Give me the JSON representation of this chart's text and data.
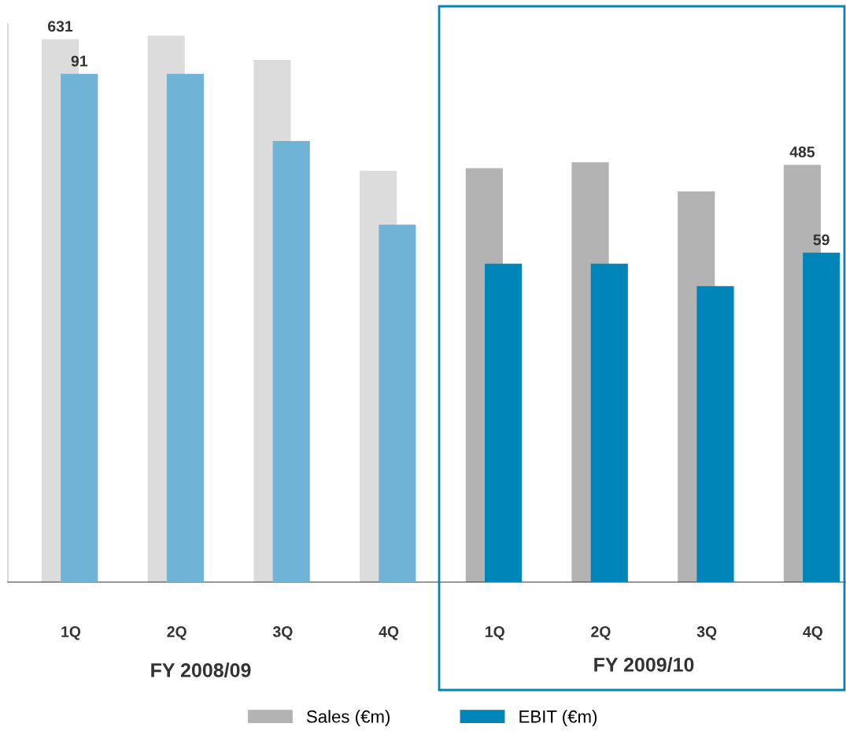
{
  "chart_data": {
    "type": "bar",
    "categories": [
      "1Q",
      "2Q",
      "3Q",
      "4Q",
      "1Q",
      "2Q",
      "3Q",
      "4Q"
    ],
    "series": [
      {
        "name": "Sales (€m)",
        "color": "#b3b3b3",
        "colors": [
          "#dcdcdc",
          "#dcdcdc",
          "#dcdcdc",
          "#dcdcdc",
          "#b3b3b3",
          "#b3b3b3",
          "#b3b3b3",
          "#b3b3b3"
        ],
        "values": [
          631,
          635,
          607,
          478,
          481,
          488,
          454,
          485
        ],
        "value_labels": [
          "631",
          null,
          null,
          null,
          null,
          null,
          null,
          "485"
        ]
      },
      {
        "name": "EBIT (€m)",
        "color": "#0085b8",
        "axis": "y2",
        "colors": [
          "#6fb3d6",
          "#6fb3d6",
          "#6fb3d6",
          "#6fb3d6",
          "#0085b8",
          "#0085b8",
          "#0085b8",
          "#0085b8"
        ],
        "values": [
          91,
          91,
          79,
          64,
          57,
          57,
          53,
          59
        ],
        "value_labels": [
          "91",
          null,
          null,
          null,
          null,
          null,
          null,
          "59"
        ]
      }
    ],
    "ylim": [
      0,
      649
    ],
    "y2lim": [
      0,
      100
    ],
    "annotations": [
      "FY 2008/09",
      "FY 2009/10"
    ],
    "legend": "bottom",
    "grid": false
  }
}
